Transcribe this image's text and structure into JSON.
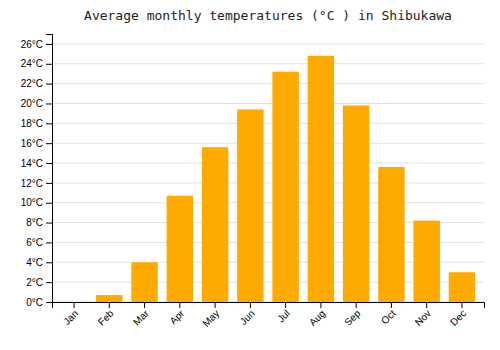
{
  "chart_data": {
    "type": "bar",
    "title": "Average monthly temperatures (°C ) in Shibukawa",
    "categories": [
      "Jan",
      "Feb",
      "Mar",
      "Apr",
      "May",
      "Jun",
      "Jul",
      "Aug",
      "Sep",
      "Oct",
      "Nov",
      "Dec"
    ],
    "values": [
      0.0,
      0.7,
      4.0,
      10.7,
      15.6,
      19.4,
      23.2,
      24.8,
      19.8,
      13.6,
      8.2,
      3.0
    ],
    "color": "#FFAA00",
    "ylim": [
      0,
      27
    ],
    "yticks": [
      {
        "value": 0,
        "label": "0°C"
      },
      {
        "value": 2,
        "label": "2°C"
      },
      {
        "value": 4,
        "label": "4°C"
      },
      {
        "value": 6,
        "label": "6°C"
      },
      {
        "value": 8,
        "label": "8°C"
      },
      {
        "value": 10,
        "label": "10°C"
      },
      {
        "value": 12,
        "label": "12°C"
      },
      {
        "value": 14,
        "label": "14°C"
      },
      {
        "value": 16,
        "label": "16°C"
      },
      {
        "value": 18,
        "label": "18°C"
      },
      {
        "value": 20,
        "label": "20°C"
      },
      {
        "value": 22,
        "label": "22°C"
      },
      {
        "value": 24,
        "label": "24°C"
      },
      {
        "value": 26,
        "label": "26°C"
      }
    ],
    "grid": true
  }
}
